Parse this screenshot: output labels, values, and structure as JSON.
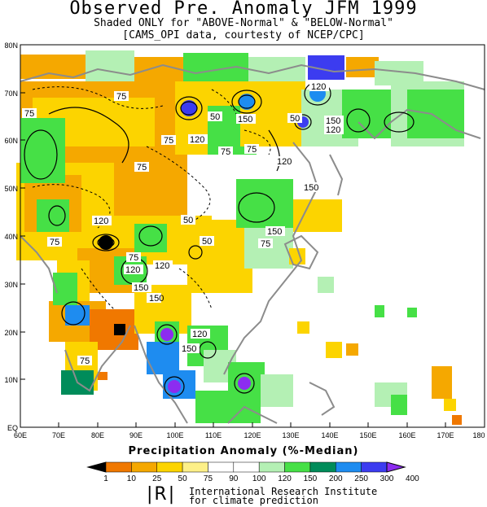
{
  "header": {
    "title": "Observed Pre. Anomaly JFM 1999",
    "subtitle1": "Shaded ONLY for \"ABOVE-Normal\" & \"BELOW-Normal\"",
    "subtitle2": "[CAMS_OPI data, courtesty of NCEP/CPC]"
  },
  "axes": {
    "y_ticks": [
      "80N",
      "70N",
      "60N",
      "50N",
      "40N",
      "30N",
      "20N",
      "10N",
      "EQ"
    ],
    "x_ticks": [
      "60E",
      "70E",
      "80E",
      "90E",
      "100E",
      "110E",
      "120E",
      "130E",
      "140E",
      "150E",
      "160E",
      "170E",
      "180"
    ],
    "lon_range": [
      60,
      180
    ],
    "lat_range": [
      0,
      80
    ]
  },
  "colorbar": {
    "title": "Precipitation Anomaly (%-Median)",
    "labels": [
      "1",
      "10",
      "25",
      "50",
      "75",
      "90",
      "100",
      "120",
      "150",
      "200",
      "250",
      "300",
      "400"
    ],
    "colors": [
      "#000000",
      "#f07800",
      "#f5a800",
      "#fcd400",
      "#fdf088",
      "#ffffff",
      "#ffffff",
      "#b4f0b4",
      "#46e046",
      "#008c5a",
      "#1e8cf0",
      "#3c3cf0",
      "#8c2cf0"
    ]
  },
  "contour_labels": [
    "75",
    "50",
    "120",
    "150",
    "75",
    "120",
    "50",
    "150",
    "75",
    "120",
    "75",
    "120",
    "75",
    "75",
    "120",
    "150",
    "50",
    "150",
    "75",
    "120",
    "150",
    "75",
    "150",
    "120",
    "75",
    "50",
    "75",
    "120",
    "150"
  ],
  "footer": {
    "logo": "|R|",
    "line1": "International Research Institute",
    "line2": "for climate prediction"
  }
}
